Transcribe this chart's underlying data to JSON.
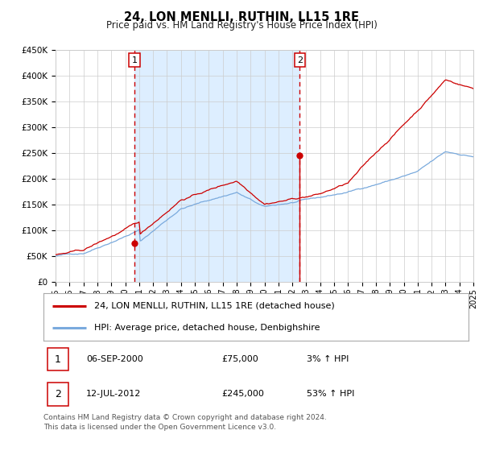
{
  "title": "24, LON MENLLI, RUTHIN, LL15 1RE",
  "subtitle": "Price paid vs. HM Land Registry's House Price Index (HPI)",
  "legend_line1": "24, LON MENLLI, RUTHIN, LL15 1RE (detached house)",
  "legend_line2": "HPI: Average price, detached house, Denbighshire",
  "annotation1_label": "1",
  "annotation1_date": "06-SEP-2000",
  "annotation1_price": "£75,000",
  "annotation1_hpi": "3% ↑ HPI",
  "annotation2_label": "2",
  "annotation2_date": "12-JUL-2012",
  "annotation2_price": "£245,000",
  "annotation2_hpi": "53% ↑ HPI",
  "footer": "Contains HM Land Registry data © Crown copyright and database right 2024.\nThis data is licensed under the Open Government Licence v3.0.",
  "x_start_year": 1995,
  "x_end_year": 2025,
  "y_min": 0,
  "y_max": 450000,
  "y_ticks": [
    0,
    50000,
    100000,
    150000,
    200000,
    250000,
    300000,
    350000,
    400000,
    450000
  ],
  "y_tick_labels": [
    "£0",
    "£50K",
    "£100K",
    "£150K",
    "£200K",
    "£250K",
    "£300K",
    "£350K",
    "£400K",
    "£450K"
  ],
  "sale1_year": 2000.67,
  "sale1_value": 75000,
  "sale2_year": 2012.53,
  "sale2_value": 245000,
  "shade_color": "#ddeeff",
  "background_color": "#ffffff",
  "grid_color": "#cccccc",
  "red_line_color": "#cc0000",
  "blue_line_color": "#7aaadd",
  "vline_color": "#cc0000",
  "title_fontsize": 10.5,
  "subtitle_fontsize": 8.5,
  "tick_fontsize": 7.5,
  "legend_fontsize": 8,
  "annotation_fontsize": 8,
  "footer_fontsize": 6.5
}
